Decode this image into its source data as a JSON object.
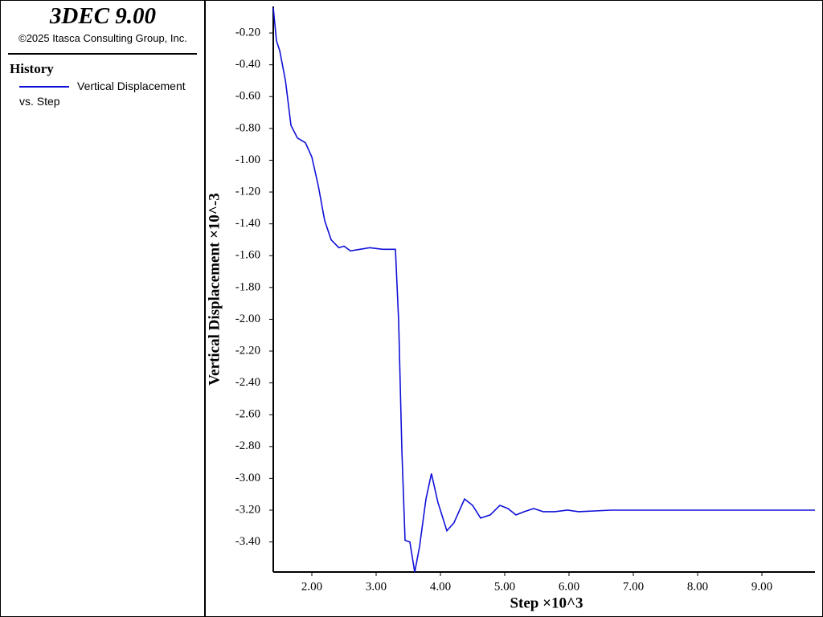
{
  "header": {
    "title": "3DEC 9.00",
    "copyright": "©2025 Itasca Consulting Group, Inc.",
    "panel": "History"
  },
  "chart_data": {
    "type": "line",
    "x_label": "Step ×10^3",
    "y_label": "Vertical Displacement ×10^-3",
    "x": [
      1.4,
      1.45,
      1.5,
      1.59,
      1.675,
      1.775,
      1.9,
      2.0,
      2.1,
      2.2,
      2.3,
      2.42,
      2.5,
      2.6,
      2.75,
      2.9,
      3.1,
      3.3,
      3.35,
      3.4,
      3.45,
      3.525,
      3.6,
      3.675,
      3.775,
      3.86,
      3.96,
      4.1,
      4.21,
      4.375,
      4.5,
      4.625,
      4.775,
      4.925,
      5.05,
      5.175,
      5.3,
      5.45,
      5.6,
      5.775,
      5.975,
      6.15,
      6.65,
      9.825
    ],
    "series": [
      {
        "name": "Vertical Displacement vs. Step",
        "color": "#1010d8",
        "values": [
          -0.04,
          -0.25,
          -0.31,
          -0.5,
          -0.78,
          -0.86,
          -0.89,
          -0.98,
          -1.16,
          -1.38,
          -1.5,
          -1.55,
          -1.54,
          -1.57,
          -1.56,
          -1.55,
          -1.56,
          -1.56,
          -2.01,
          -2.82,
          -3.39,
          -3.4,
          -3.59,
          -3.43,
          -3.13,
          -2.97,
          -3.15,
          -3.33,
          -3.28,
          -3.13,
          -3.17,
          -3.25,
          -3.23,
          -3.17,
          -3.19,
          -3.23,
          -3.21,
          -3.19,
          -3.21,
          -3.21,
          -3.2,
          -3.21,
          -3.2,
          -3.2
        ]
      }
    ],
    "xlim": [
      1.4,
      9.825
    ],
    "ylim": [
      -3.589,
      -0.033
    ],
    "xticks": [
      {
        "value": 2,
        "label": "2.00"
      },
      {
        "value": 3,
        "label": "3.00"
      },
      {
        "value": 4,
        "label": "4.00"
      },
      {
        "value": 5,
        "label": "5.00"
      },
      {
        "value": 6,
        "label": "6.00"
      },
      {
        "value": 7,
        "label": "7.00"
      },
      {
        "value": 8,
        "label": "8.00"
      },
      {
        "value": 9,
        "label": "9.00"
      }
    ],
    "yticks": [
      {
        "value": -0.2,
        "label": "-0.20"
      },
      {
        "value": -0.4,
        "label": "-0.40"
      },
      {
        "value": -0.6,
        "label": "-0.60"
      },
      {
        "value": -0.8,
        "label": "-0.80"
      },
      {
        "value": -1.0,
        "label": "-1.00"
      },
      {
        "value": -1.2,
        "label": "-1.20"
      },
      {
        "value": -1.4,
        "label": "-1.40"
      },
      {
        "value": -1.6,
        "label": "-1.60"
      },
      {
        "value": -1.8,
        "label": "-1.80"
      },
      {
        "value": -2.0,
        "label": "-2.00"
      },
      {
        "value": -2.2,
        "label": "-2.20"
      },
      {
        "value": -2.4,
        "label": "-2.40"
      },
      {
        "value": -2.6,
        "label": "-2.60"
      },
      {
        "value": -2.8,
        "label": "-2.80"
      },
      {
        "value": -3.0,
        "label": "-3.00"
      },
      {
        "value": -3.2,
        "label": "-3.20"
      },
      {
        "value": -3.4,
        "label": "-3.40"
      }
    ],
    "grid": false
  }
}
